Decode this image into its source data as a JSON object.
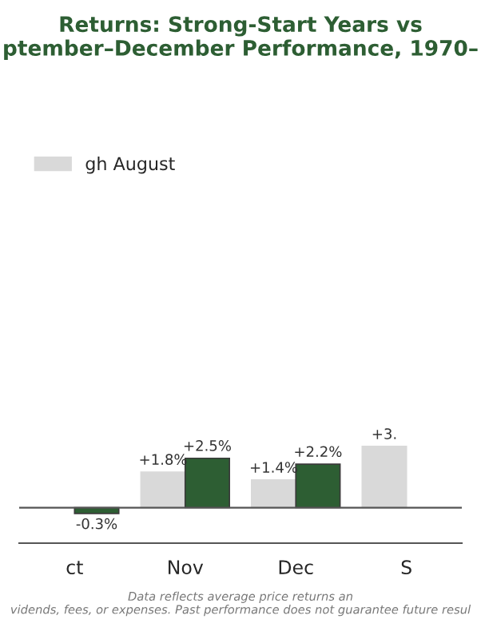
{
  "chart_data": {
    "type": "bar",
    "title": "Returns: Strong-Start Years vs\nptember–December Performance, 1970–",
    "categories": [
      "ct",
      "Nov",
      "Dec",
      "S"
    ],
    "series": [
      {
        "name": "gh August",
        "color": "#d9d9d9",
        "values": [
          null,
          1.8,
          1.4,
          3.1
        ],
        "value_labels": [
          null,
          "+1.8%",
          "+1.4%",
          "+3."
        ]
      },
      {
        "color": "#2d5e33",
        "values": [
          -0.3,
          2.5,
          2.2,
          null
        ],
        "value_labels": [
          "-0.3%",
          "+2.5%",
          "+2.2%",
          null
        ]
      }
    ],
    "tick_labels": "x",
    "legend": "top left",
    "annotations": [
      "Data reflects average price returns an\nvidends, fees, or expenses. Past performance does not guarantee future resul"
    ]
  }
}
